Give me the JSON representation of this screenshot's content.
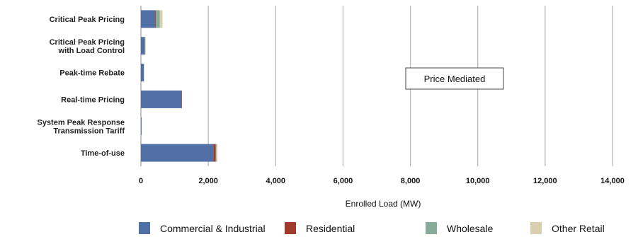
{
  "chart_data": {
    "type": "bar",
    "orientation": "horizontal",
    "stacked": true,
    "title": "",
    "xlabel": "Enrolled Load (MW)",
    "ylabel": "",
    "xlim": [
      0,
      14000
    ],
    "xticks": [
      0,
      2000,
      4000,
      6000,
      8000,
      10000,
      12000,
      14000
    ],
    "xtick_labels": [
      "0",
      "2,000",
      "4,000",
      "6,000",
      "8,000",
      "10,000",
      "12,000",
      "14,000"
    ],
    "grid": "vertical",
    "categories": [
      [
        "Critical Peak Pricing"
      ],
      [
        "Critical Peak Pricing",
        "with Load Control"
      ],
      [
        "Peak-time Rebate"
      ],
      [
        "Real-time Pricing"
      ],
      [
        "System Peak Response",
        "Transmission Tariff"
      ],
      [
        "Time-of-use"
      ]
    ],
    "series": [
      {
        "name": "Commercial & Industrial",
        "color": "#4f6fa5",
        "values": [
          420,
          110,
          90,
          1200,
          20,
          2150
        ]
      },
      {
        "name": "Residential",
        "color": "#a03a2c",
        "values": [
          20,
          5,
          0,
          10,
          0,
          70
        ]
      },
      {
        "name": "Wholesale",
        "color": "#88aa99",
        "values": [
          120,
          10,
          0,
          0,
          0,
          20
        ]
      },
      {
        "name": "Other Retail",
        "color": "#d9cfae",
        "values": [
          80,
          10,
          0,
          0,
          0,
          30
        ]
      }
    ],
    "annotation": "Price Mediated",
    "legend_position": "bottom"
  }
}
